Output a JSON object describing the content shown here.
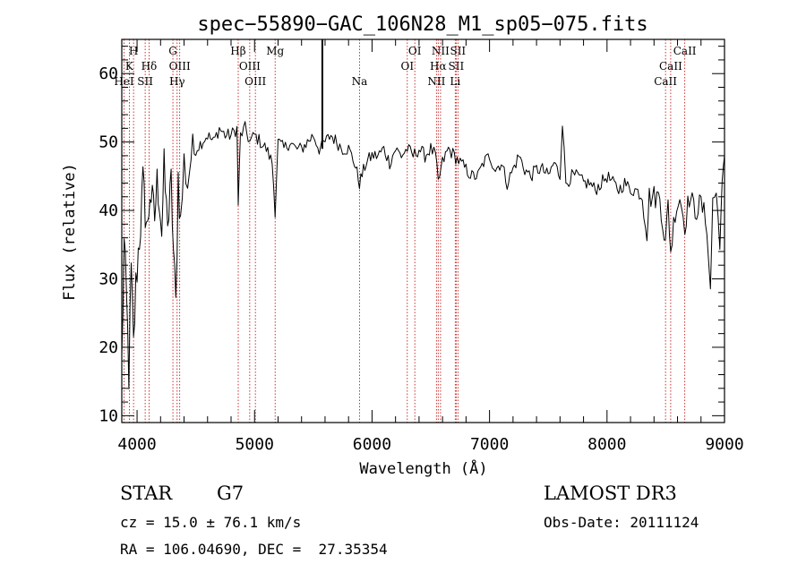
{
  "chart_data": {
    "type": "line",
    "title": "spec−55890−GAC_106N28_M1_sp05−075.fits",
    "xlabel": "Wavelength (Å)",
    "ylabel": "Flux (relative)",
    "xlim": [
      3870,
      9000
    ],
    "ylim": [
      9,
      65
    ],
    "x_ticks": [
      4000,
      5000,
      6000,
      7000,
      8000,
      9000
    ],
    "y_ticks": [
      10,
      20,
      30,
      40,
      50,
      60
    ],
    "x_minor_step": 200,
    "y_minor_step": 2,
    "series": [
      {
        "name": "flux",
        "x": [
          3870,
          3890,
          3910,
          3930,
          3950,
          3970,
          3990,
          4010,
          4030,
          4050,
          4070,
          4090,
          4110,
          4130,
          4150,
          4170,
          4190,
          4210,
          4230,
          4250,
          4270,
          4290,
          4310,
          4330,
          4350,
          4370,
          4400,
          4430,
          4460,
          4500,
          4550,
          4600,
          4650,
          4700,
          4750,
          4800,
          4850,
          4861,
          4880,
          4920,
          4960,
          5000,
          5050,
          5100,
          5150,
          5175,
          5200,
          5250,
          5300,
          5350,
          5400,
          5450,
          5500,
          5550,
          5600,
          5650,
          5700,
          5750,
          5800,
          5850,
          5893,
          5950,
          6000,
          6050,
          6100,
          6150,
          6200,
          6250,
          6300,
          6350,
          6400,
          6450,
          6500,
          6540,
          6563,
          6600,
          6650,
          6700,
          6750,
          6800,
          6850,
          6900,
          6950,
          7000,
          7050,
          7100,
          7150,
          7200,
          7250,
          7300,
          7350,
          7400,
          7450,
          7500,
          7550,
          7600,
          7620,
          7650,
          7700,
          7750,
          7800,
          7850,
          7900,
          7950,
          8000,
          8050,
          8100,
          8150,
          8200,
          8250,
          8300,
          8340,
          8360,
          8400,
          8450,
          8498,
          8520,
          8542,
          8580,
          8620,
          8662,
          8700,
          8750,
          8800,
          8850,
          8880,
          8900,
          8930,
          8960,
          8980,
          9000
        ],
        "y": [
          18,
          35,
          27,
          16,
          31,
          20,
          29,
          34,
          38,
          44,
          40,
          37,
          43,
          41,
          39,
          44,
          42,
          37,
          46,
          40,
          39,
          44,
          34,
          26,
          45,
          38,
          47,
          44,
          48,
          49,
          50,
          51,
          50,
          52,
          51,
          51,
          52,
          41,
          51,
          52,
          50,
          51,
          50,
          49,
          47,
          40,
          50,
          49,
          50,
          49,
          49,
          50,
          51,
          49,
          50,
          51,
          50,
          49,
          49,
          47,
          44,
          47,
          48,
          48,
          49,
          47,
          49,
          48,
          49,
          48,
          49,
          48,
          49,
          48,
          44,
          47,
          49,
          48,
          47,
          46,
          45,
          45,
          47,
          48,
          46,
          47,
          44,
          46,
          48,
          46,
          45,
          46,
          46,
          45,
          47,
          45,
          53,
          44,
          45,
          45,
          44,
          44,
          43,
          44,
          45,
          44,
          43,
          44,
          43,
          43,
          42,
          37,
          42,
          42,
          42,
          35,
          41,
          34,
          40,
          42,
          38,
          42,
          40,
          41,
          38,
          28,
          42,
          42,
          36,
          43,
          48
        ]
      }
    ],
    "spike": {
      "x": 5577,
      "y_top": 65,
      "y_bottom": 49
    },
    "emission_lines": [
      {
        "label": "H",
        "x": 3970,
        "row": 1
      },
      {
        "label": "K",
        "x": 3934,
        "row": 2
      },
      {
        "label": "HeI",
        "x": 3889,
        "row": 3
      },
      {
        "label": "Hδ",
        "x": 4102,
        "row": 2
      },
      {
        "label": "SII",
        "x": 4069,
        "row": 3
      },
      {
        "label": "G",
        "x": 4305,
        "row": 1
      },
      {
        "label": "OIII",
        "x": 4363,
        "row": 2
      },
      {
        "label": "Hγ",
        "x": 4341,
        "row": 3
      },
      {
        "label": "Hβ",
        "x": 4861,
        "row": 1
      },
      {
        "label": "OIII",
        "x": 4959,
        "row": 2
      },
      {
        "label": "OIII",
        "x": 5007,
        "row": 3
      },
      {
        "label": "Mg",
        "x": 5175,
        "row": 1
      },
      {
        "label": "Na",
        "x": 5893,
        "row": 3
      },
      {
        "label": "OI",
        "x": 6364,
        "row": 1
      },
      {
        "label": "OI",
        "x": 6300,
        "row": 2
      },
      {
        "label": "NII",
        "x": 6583,
        "row": 1
      },
      {
        "label": "Hα",
        "x": 6563,
        "row": 2
      },
      {
        "label": "NII",
        "x": 6548,
        "row": 3
      },
      {
        "label": "SII",
        "x": 6731,
        "row": 1
      },
      {
        "label": "SII",
        "x": 6716,
        "row": 2
      },
      {
        "label": "Li",
        "x": 6708,
        "row": 3
      },
      {
        "label": "CaII",
        "x": 8662,
        "row": 1
      },
      {
        "label": "CaII",
        "x": 8542,
        "row": 2
      },
      {
        "label": "CaII",
        "x": 8498,
        "row": 3
      }
    ]
  },
  "info": {
    "object_class": "STAR",
    "subclass": "G7",
    "survey": "LAMOST DR3",
    "redshift": "cz = 15.0 ± 76.1 km/s",
    "obs_date": "Obs-Date: 20111124",
    "coords": "RA = 106.04690, DEC =  27.35354"
  },
  "colors": {
    "line": "#000000",
    "emission_marker": "#c00000",
    "background": "#ffffff"
  }
}
